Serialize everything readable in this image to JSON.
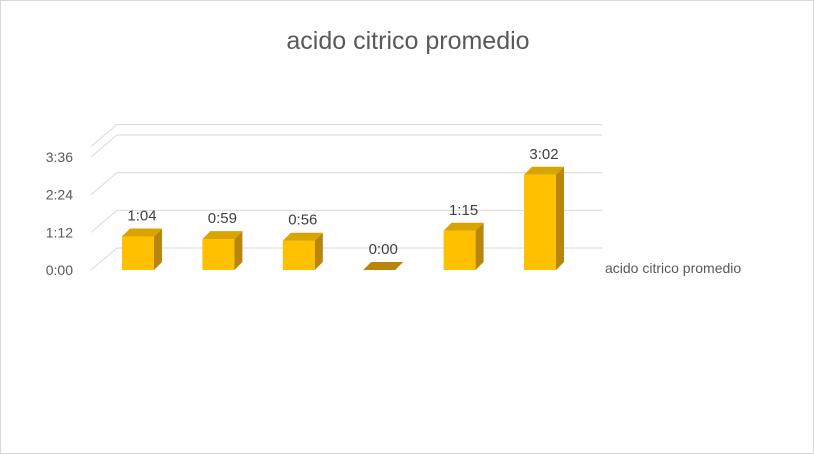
{
  "chart_data": {
    "type": "bar",
    "title": "acido citrico promedio",
    "categories": [
      "",
      "",
      "",
      "",
      "",
      ""
    ],
    "series": [
      {
        "name": "acido citrico promedio",
        "values": [
          "1:04",
          "0:59",
          "0:56",
          "0:00",
          "1:15",
          "3:02"
        ]
      }
    ],
    "y_ticks": [
      "0:00",
      "1:12",
      "2:24",
      "3:36"
    ],
    "ylim": [
      "0:00",
      "3:36"
    ],
    "grid": true,
    "legend": "right",
    "three_d": true,
    "colors": {
      "bar_front": "#FFC000",
      "bar_side": "#B8860B",
      "bar_top": "#D9A300",
      "grid": "#d9d9d9"
    }
  }
}
